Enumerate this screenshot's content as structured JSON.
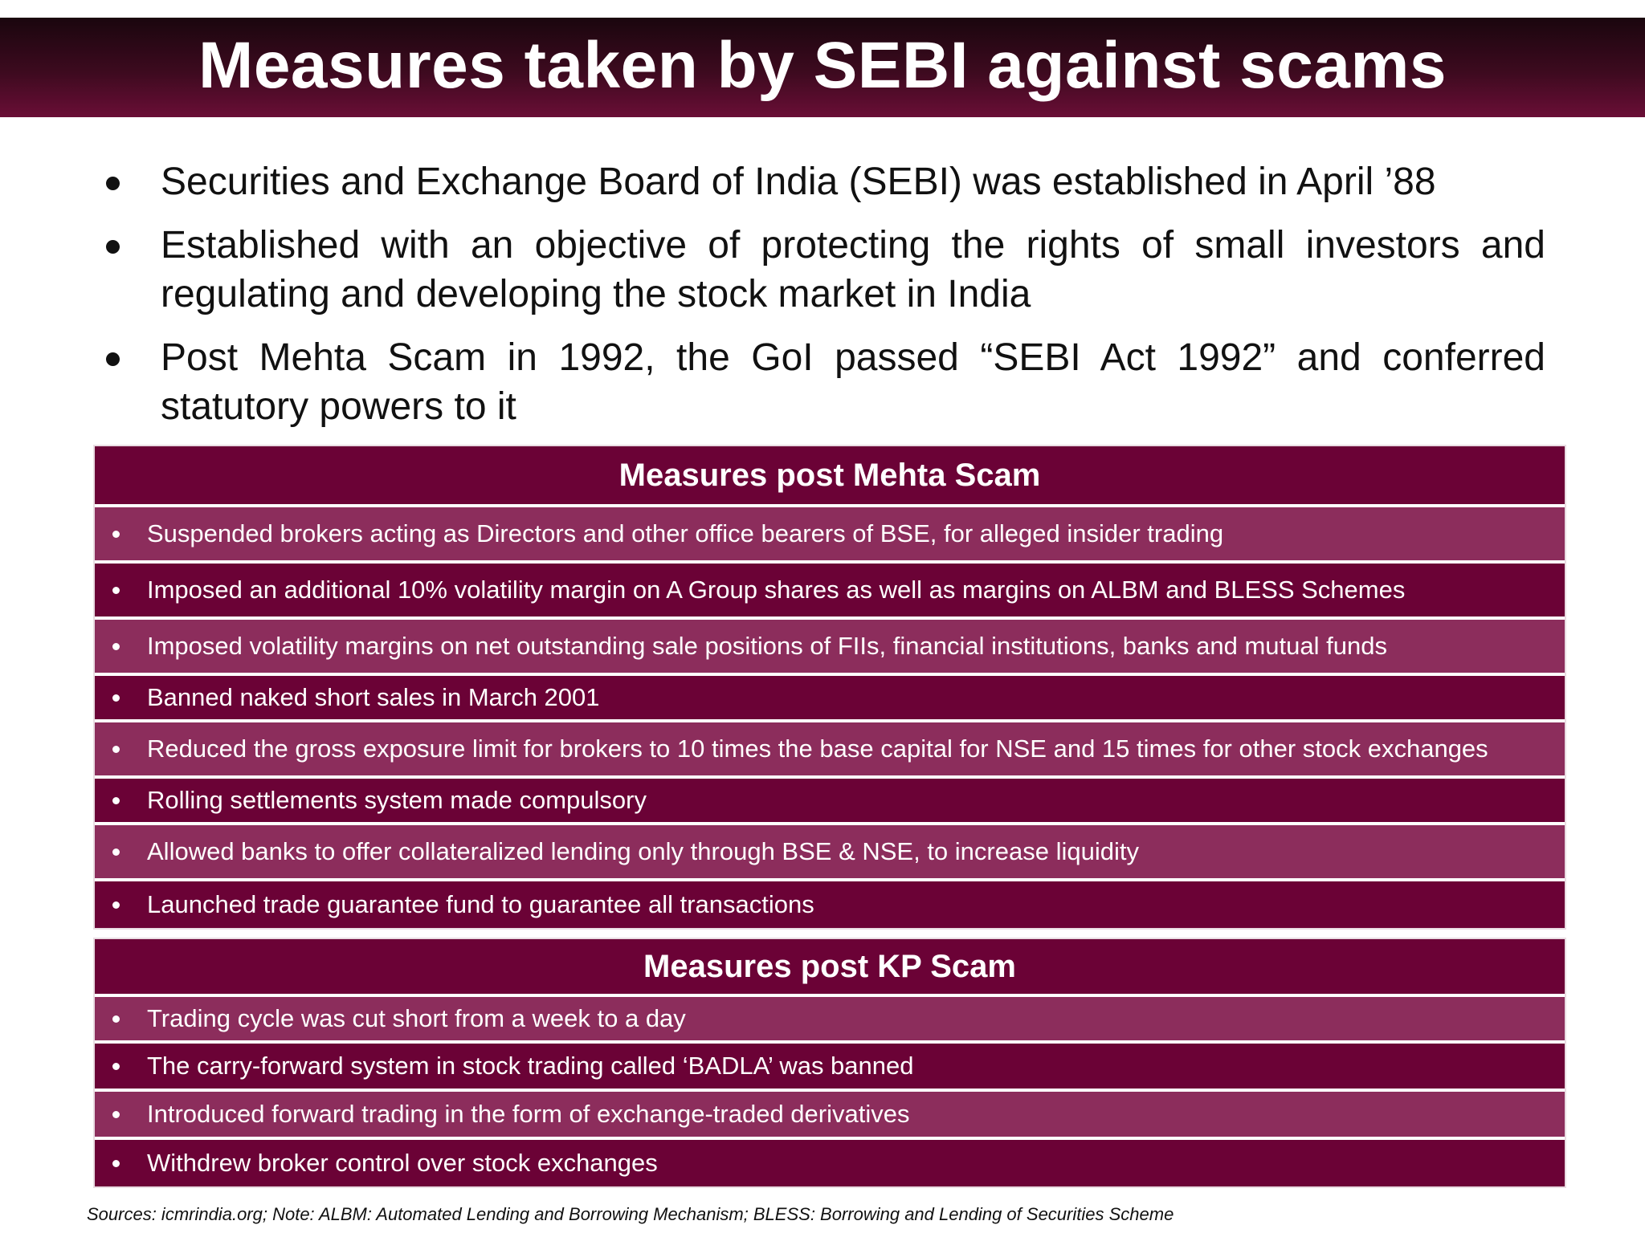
{
  "title": "Measures taken by SEBI against scams",
  "intro_points": [
    "Securities and Exchange Board of India (SEBI) was established in April ’88",
    "Established with an objective of protecting the rights of small investors and regulating and developing the stock market in India",
    "Post Mehta Scam in 1992, the GoI passed “SEBI Act 1992” and conferred statutory powers to it"
  ],
  "mehta_table": {
    "header": "Measures post Mehta Scam",
    "rows": [
      "Suspended brokers acting as Directors and other office bearers of BSE, for alleged insider trading",
      "Imposed an additional 10% volatility margin on A Group shares as well as margins on ALBM and BLESS Schemes",
      "Imposed volatility margins on net outstanding sale positions of FIIs, financial institutions, banks and mutual funds",
      "Banned naked short sales in March 2001",
      "Reduced the gross exposure limit for brokers to 10 times the base capital for NSE and 15 times for other stock exchanges",
      "Rolling settlements system made compulsory",
      "Allowed banks to offer collateralized lending only through BSE & NSE, to increase liquidity",
      "Launched trade guarantee fund to guarantee all transactions"
    ]
  },
  "kp_table": {
    "header": "Measures post KP Scam",
    "rows": [
      "Trading cycle was cut short from a week to a day",
      "The carry-forward system in stock trading called ‘BADLA’ was banned",
      "Introduced forward trading in the form of exchange-traded derivatives",
      "Withdrew broker control over stock exchanges"
    ]
  },
  "footer": "Sources: icmrindia.org; Note: ALBM: Automated Lending and Borrowing Mechanism; BLESS: Borrowing and Lending of Securities Scheme",
  "colors": {
    "title_bar": "#3d0a1f",
    "row_dark": "#6b0236",
    "row_light": "#8c2d5c"
  }
}
